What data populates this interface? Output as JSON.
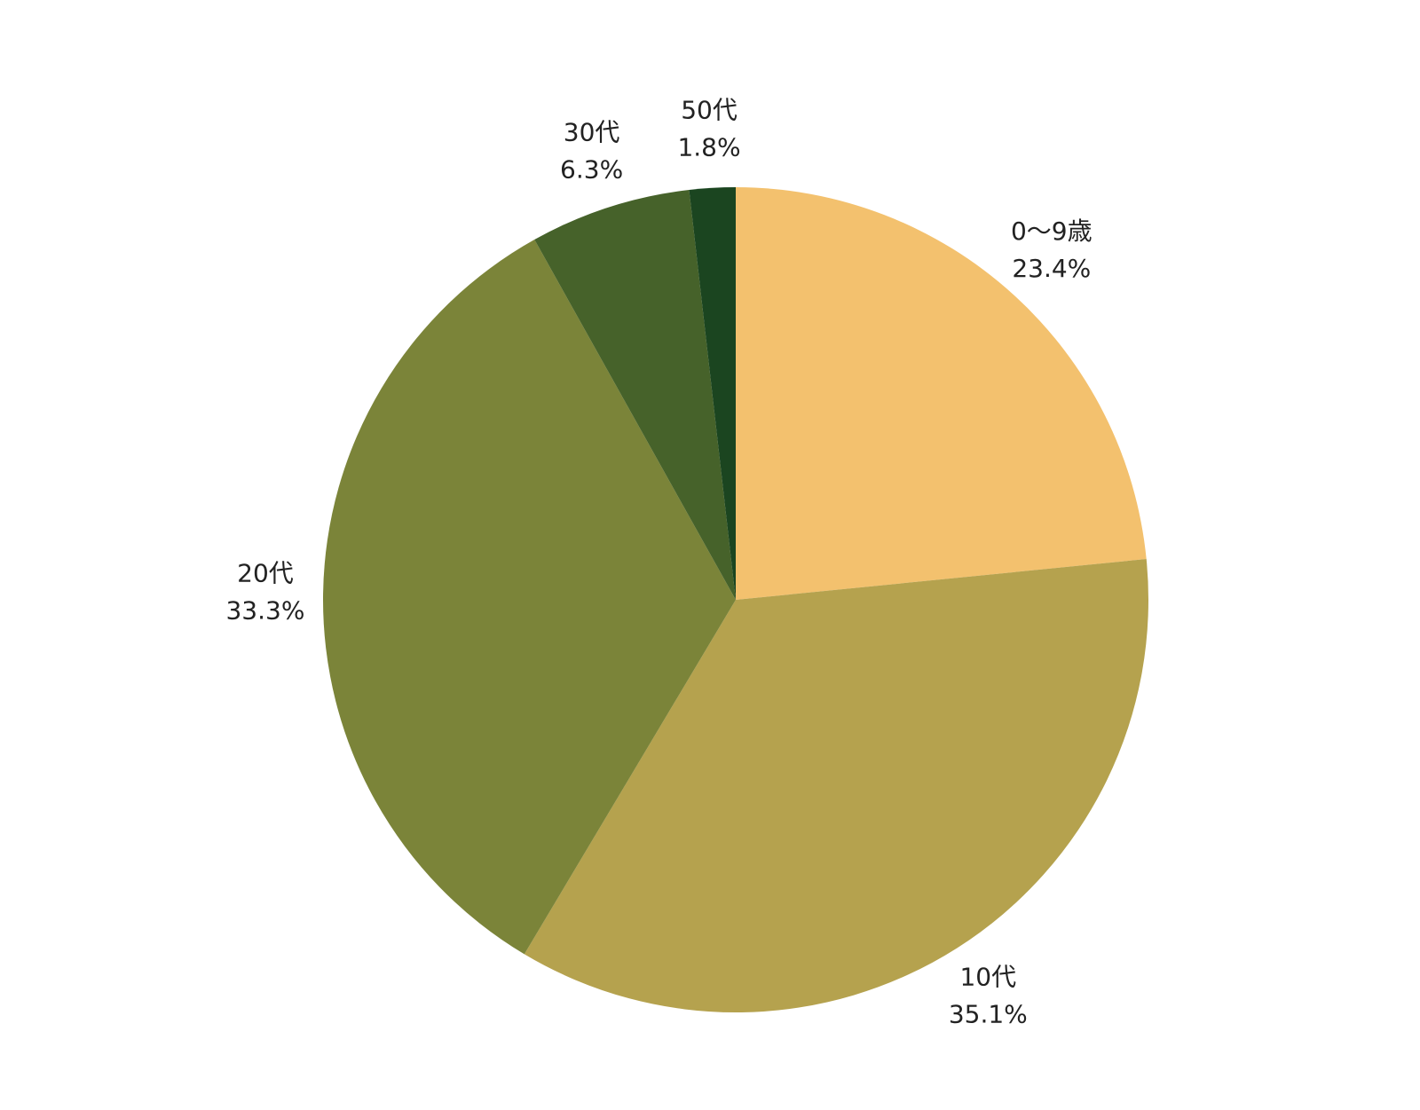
{
  "chart_data": {
    "type": "pie",
    "categories": [
      "0～9歳",
      "10代",
      "20代",
      "30代",
      "50代"
    ],
    "values": [
      23.4,
      35.1,
      33.3,
      6.3,
      1.8
    ],
    "value_labels": [
      "23.4%",
      "35.1%",
      "33.3%",
      "6.3%",
      "1.8%"
    ],
    "colors": [
      "#f3c16e",
      "#b5a24e",
      "#7b8439",
      "#46622a",
      "#1b4520"
    ]
  }
}
